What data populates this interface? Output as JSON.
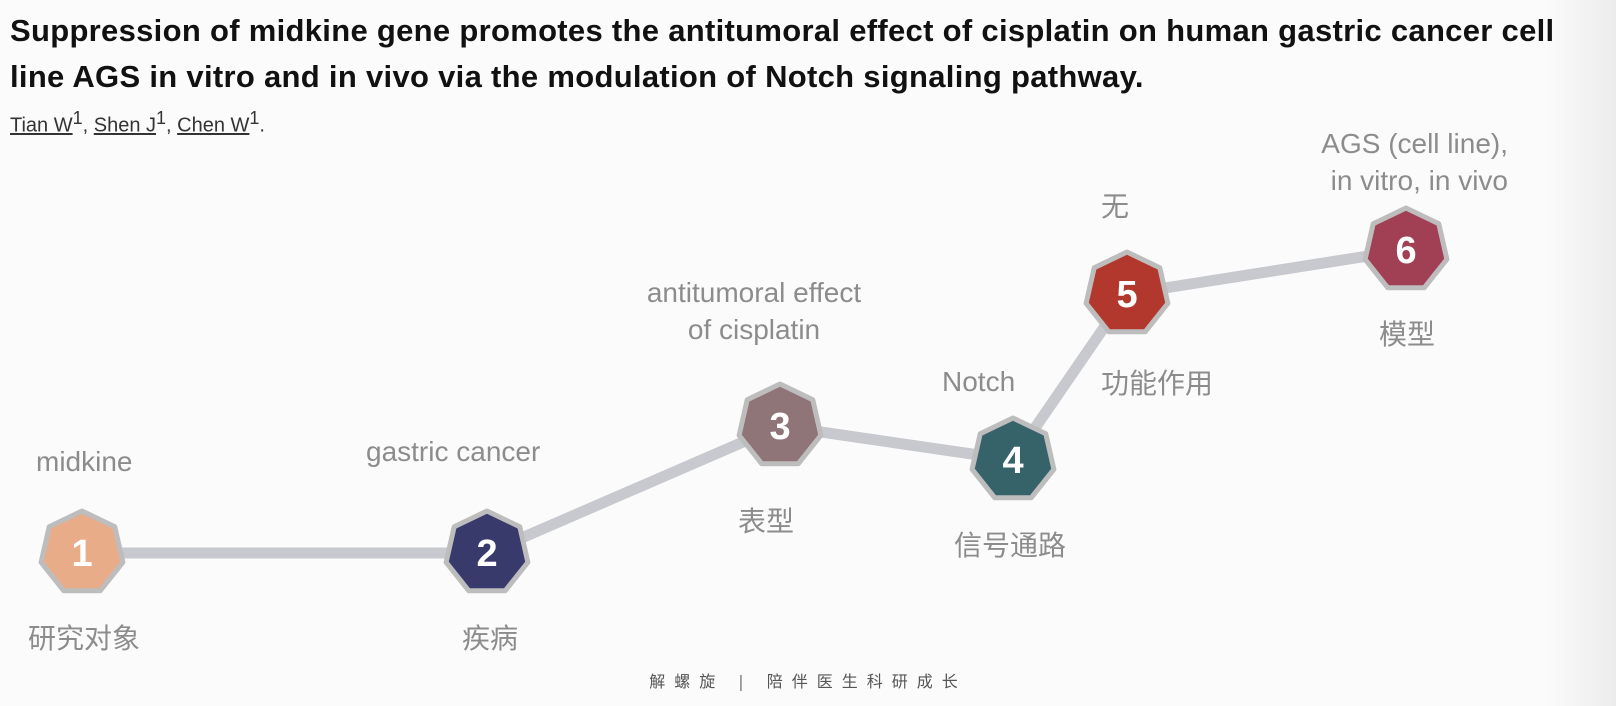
{
  "title": "Suppression of midkine gene promotes the antitumoral effect of cisplatin on human gastric cancer cell line AGS in vitro and in vivo via the modulation of Notch signaling pathway.",
  "authors": [
    {
      "name": "Tian W",
      "affiliation": "1",
      "separator": ", "
    },
    {
      "name": "Shen J",
      "affiliation": "1",
      "separator": ", "
    },
    {
      "name": "Chen W",
      "affiliation": "1",
      "separator": "."
    }
  ],
  "steps": [
    {
      "number": "1",
      "color": "#e9ac88",
      "term": "midkine",
      "category": "研究对象"
    },
    {
      "number": "2",
      "color": "#383a6c",
      "term": "gastric cancer",
      "category": "疾病"
    },
    {
      "number": "3",
      "color": "#8f7478",
      "term": "antitumoral effect of cisplatin",
      "category": "表型"
    },
    {
      "number": "4",
      "color": "#36636a",
      "term": "Notch",
      "category": "信号通路"
    },
    {
      "number": "5",
      "color": "#b2382e",
      "term": "无",
      "category": "功能作用"
    },
    {
      "number": "6",
      "color": "#a13f55",
      "term": "AGS (cell line), in vitro, in vivo",
      "category": "模型"
    }
  ],
  "footer": {
    "brand": "解螺旋",
    "separator": "|",
    "slogan": "陪伴医生科研成长"
  },
  "colors": {
    "connector": "#c8c9ce",
    "node_border": "#bdbdbd",
    "label_gray": "#8c8c8c"
  }
}
